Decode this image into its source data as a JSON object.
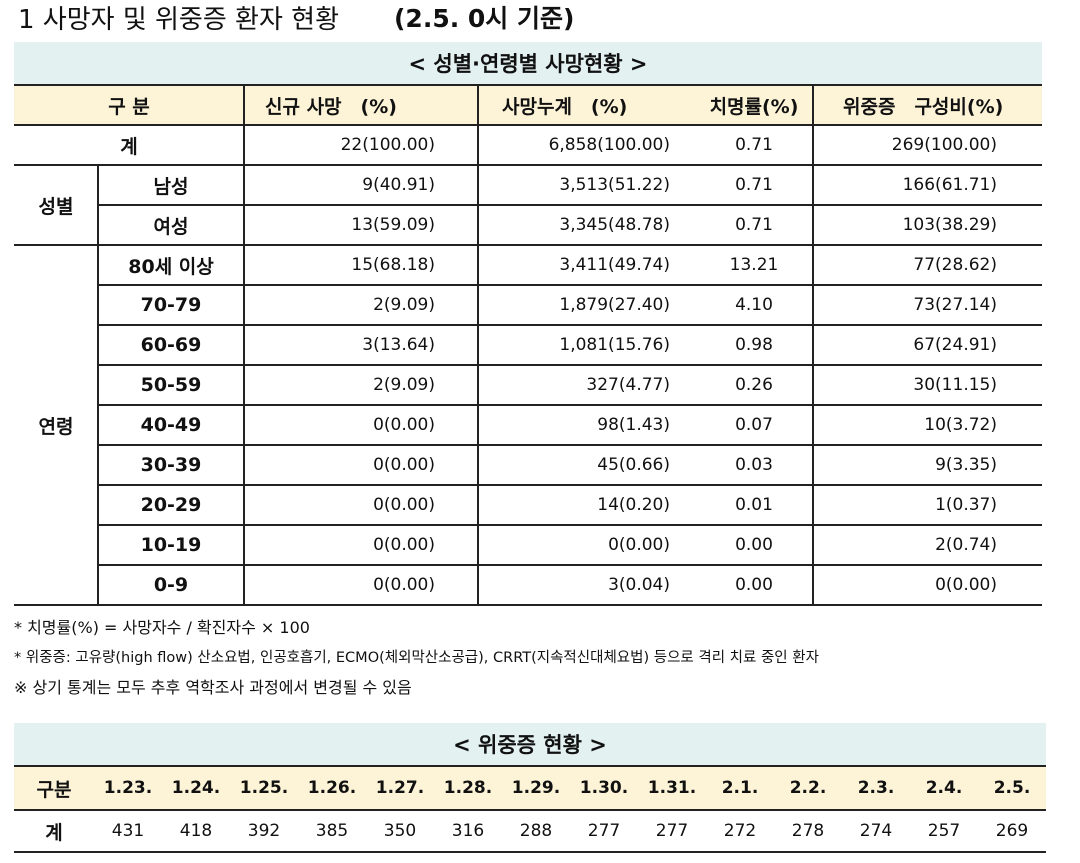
{
  "title": {
    "text": "1 사망자 및 위중증 환자 현황",
    "date": "(2.5. 0시 기준)"
  },
  "death_table": {
    "caption": "< 성별·연령별 사망현황 >",
    "headers": [
      "구 분",
      "신규 사망　(%)",
      "사망누계　(%)",
      "치명률(%)",
      "위중증　구성비(%)"
    ],
    "total": {
      "label": "계",
      "cells": [
        "22(100.00)",
        "6,858(100.00)",
        "0.71",
        "269(100.00)"
      ]
    },
    "groups": [
      {
        "label": "성별",
        "rows": [
          {
            "label": "남성",
            "cells": [
              "9(40.91)",
              "3,513(51.22)",
              "0.71",
              "166(61.71)"
            ]
          },
          {
            "label": "여성",
            "cells": [
              "13(59.09)",
              "3,345(48.78)",
              "0.71",
              "103(38.29)"
            ]
          }
        ]
      },
      {
        "label": "연령",
        "rows": [
          {
            "label": "80세 이상",
            "cells": [
              "15(68.18)",
              "3,411(49.74)",
              "13.21",
              "77(28.62)"
            ]
          },
          {
            "label": "70-79",
            "cells": [
              "2(9.09)",
              "1,879(27.40)",
              "4.10",
              "73(27.14)"
            ]
          },
          {
            "label": "60-69",
            "cells": [
              "3(13.64)",
              "1,081(15.76)",
              "0.98",
              "67(24.91)"
            ]
          },
          {
            "label": "50-59",
            "cells": [
              "2(9.09)",
              "327(4.77)",
              "0.26",
              "30(11.15)"
            ]
          },
          {
            "label": "40-49",
            "cells": [
              "0(0.00)",
              "98(1.43)",
              "0.07",
              "10(3.72)"
            ]
          },
          {
            "label": "30-39",
            "cells": [
              "0(0.00)",
              "45(0.66)",
              "0.03",
              "9(3.35)"
            ]
          },
          {
            "label": "20-29",
            "cells": [
              "0(0.00)",
              "14(0.20)",
              "0.01",
              "1(0.37)"
            ]
          },
          {
            "label": "10-19",
            "cells": [
              "0(0.00)",
              "0(0.00)",
              "0.00",
              "2(0.74)"
            ]
          },
          {
            "label": "0-9",
            "cells": [
              "0(0.00)",
              "3(0.04)",
              "0.00",
              "0(0.00)"
            ]
          }
        ]
      }
    ]
  },
  "notes": [
    "* 치명률(%) = 사망자수 / 확진자수 × 100",
    "* 위중증: 고유량(high flow) 산소요법, 인공호흡기, ECMO(체외막산소공급), CRRT(지속적신대체요법) 등으로 격리 치료 중인 환자",
    "※ 상기 통계는 모두 추후 역학조사 과정에서 변경될 수 있음"
  ],
  "severe_table": {
    "caption": "< 위중증 현황 >",
    "header_label": "구분",
    "dates": [
      "1.23.",
      "1.24.",
      "1.25.",
      "1.26.",
      "1.27.",
      "1.28.",
      "1.29.",
      "1.30.",
      "1.31.",
      "2.1.",
      "2.2.",
      "2.3.",
      "2.4.",
      "2.5."
    ],
    "row_label": "계",
    "values": [
      "431",
      "418",
      "392",
      "385",
      "350",
      "316",
      "288",
      "277",
      "277",
      "272",
      "278",
      "274",
      "257",
      "269"
    ]
  }
}
